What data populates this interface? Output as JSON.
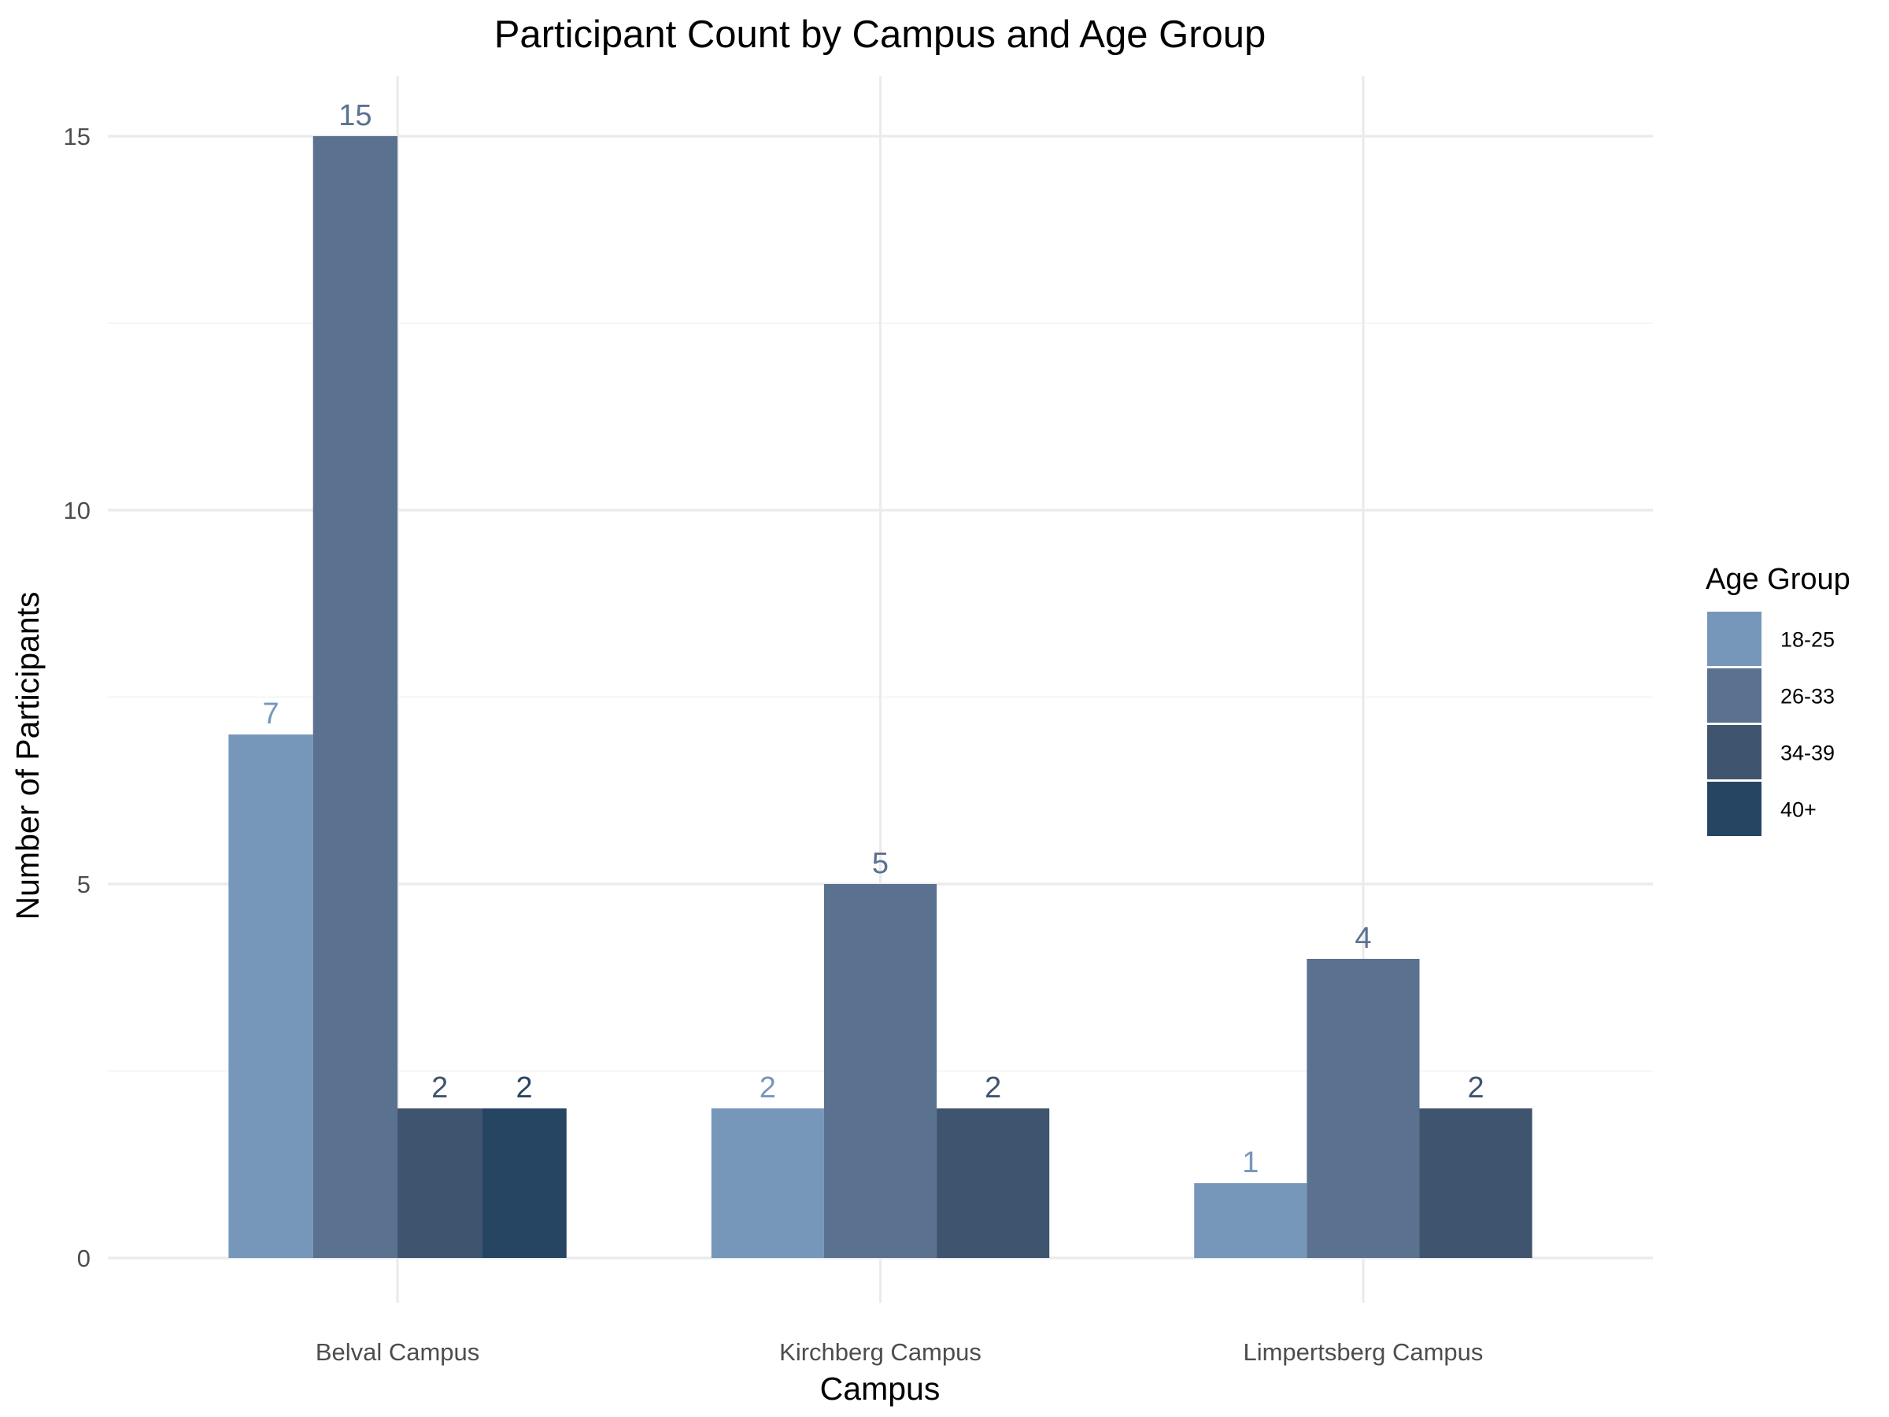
{
  "chart_data": {
    "type": "bar",
    "title": "Participant Count by Campus and Age Group",
    "xlabel": "Campus",
    "ylabel": "Number of Participants",
    "categories": [
      "Belval Campus",
      "Kirchberg Campus",
      "Limpertsberg Campus"
    ],
    "ylim": [
      -0.6,
      15.8
    ],
    "yticks": [
      0,
      5,
      10,
      15
    ],
    "grid": true,
    "legend": {
      "title": "Age Group",
      "position": "right"
    },
    "series": [
      {
        "name": "18-25",
        "color": "#7697ba",
        "values": [
          7,
          2,
          1
        ]
      },
      {
        "name": "26-33",
        "color": "#5a7190",
        "values": [
          15,
          5,
          4
        ]
      },
      {
        "name": "34-39",
        "color": "#3f546e",
        "values": [
          2,
          2,
          2
        ]
      },
      {
        "name": "40+",
        "color": "#264563",
        "values": [
          2,
          null,
          null
        ]
      }
    ]
  }
}
